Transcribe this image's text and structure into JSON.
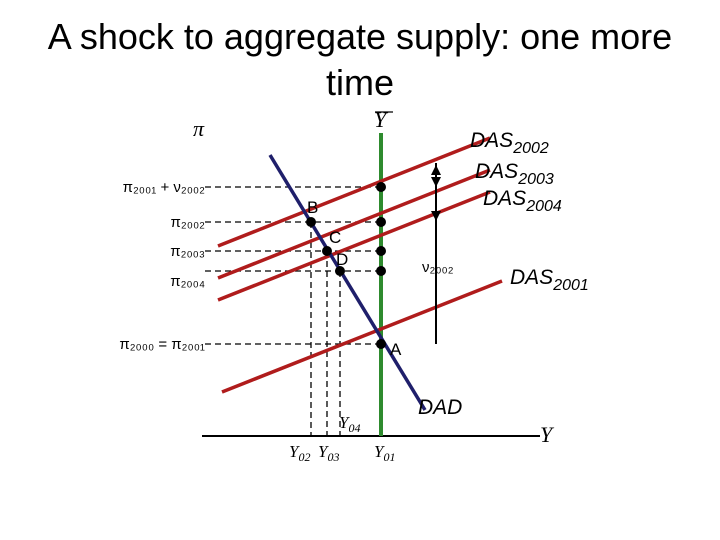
{
  "title": "A shock to aggregate supply: one more time",
  "colors": {
    "dad": "#1f1f6b",
    "das": "#b01c1c",
    "ybar": "#2e8b2e",
    "axis": "#000000"
  },
  "axes": {
    "y_label": "π",
    "x_label": "Y",
    "potential_label": "Y"
  },
  "y_ticks": [
    {
      "label": "π₂₀₀₁ + ν₂₀₀₂"
    },
    {
      "label": "π₂₀₀₂"
    },
    {
      "label": "π₂₀₀₃"
    },
    {
      "label": "π₂₀₀₄"
    },
    {
      "label": "π₂₀₀₀ = π₂₀₀₁"
    }
  ],
  "curves": {
    "dad": "DAD",
    "das_2001": {
      "base": "DAS",
      "sub": "2001"
    },
    "das_2002": {
      "base": "DAS",
      "sub": "2002"
    },
    "das_2003": {
      "base": "DAS",
      "sub": "2003"
    },
    "das_2004": {
      "base": "DAS",
      "sub": "2004"
    }
  },
  "points": {
    "a": "A",
    "b": "B",
    "c": "C",
    "d": "D"
  },
  "shock_label": "ν₂₀₀₂",
  "x_ticks": {
    "y01": {
      "base": "Y",
      "sub": "01"
    },
    "y02": {
      "base": "Y",
      "sub": "02"
    },
    "y03": {
      "base": "Y",
      "sub": "03"
    },
    "y04": {
      "base": "Y",
      "sub": "04"
    }
  }
}
